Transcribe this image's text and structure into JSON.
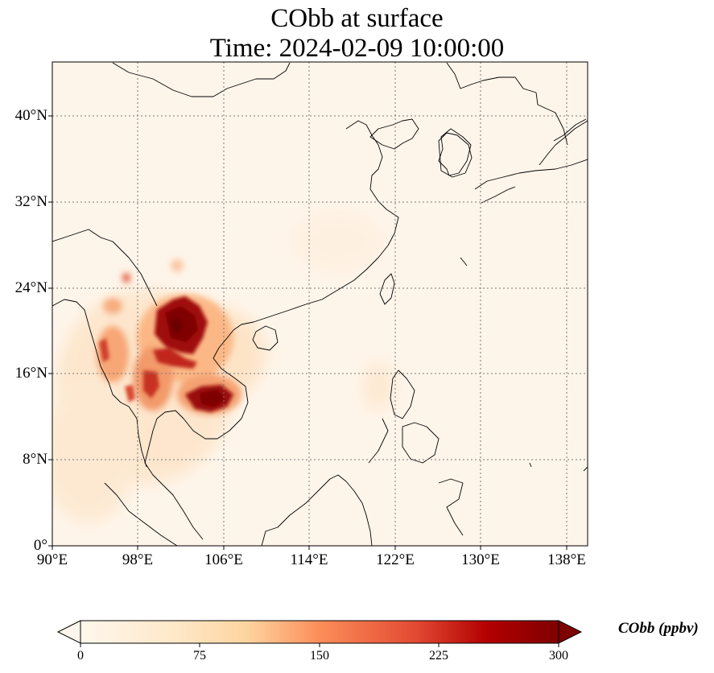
{
  "title_line1": "CObb at surface",
  "title_line2": "Time: 2024-02-09 10:00:00",
  "map": {
    "lon_range": [
      90,
      140
    ],
    "lat_range": [
      0,
      45
    ],
    "gridlines": "dotted",
    "lat_ticks": [
      "0°",
      "8°N",
      "16°N",
      "24°N",
      "32°N",
      "40°N"
    ],
    "lon_ticks": [
      "90°E",
      "98°E",
      "106°E",
      "114°E",
      "122°E",
      "130°E",
      "138°E"
    ],
    "colormap": "OrRd",
    "hotspots": [
      {
        "region": "northern Laos / northern Thailand",
        "level": "high"
      },
      {
        "region": "Cambodia",
        "level": "high"
      },
      {
        "region": "eastern Myanmar",
        "level": "moderate"
      }
    ]
  },
  "colorbar": {
    "label": "CObb (ppbv)",
    "ticks": [
      "0",
      "75",
      "150",
      "225",
      "300"
    ],
    "min": 0,
    "max": 300,
    "extend": "both",
    "colors": [
      "#fff7ec",
      "#fdd49e",
      "#fc8d59",
      "#d7301f",
      "#7f0000"
    ]
  }
}
